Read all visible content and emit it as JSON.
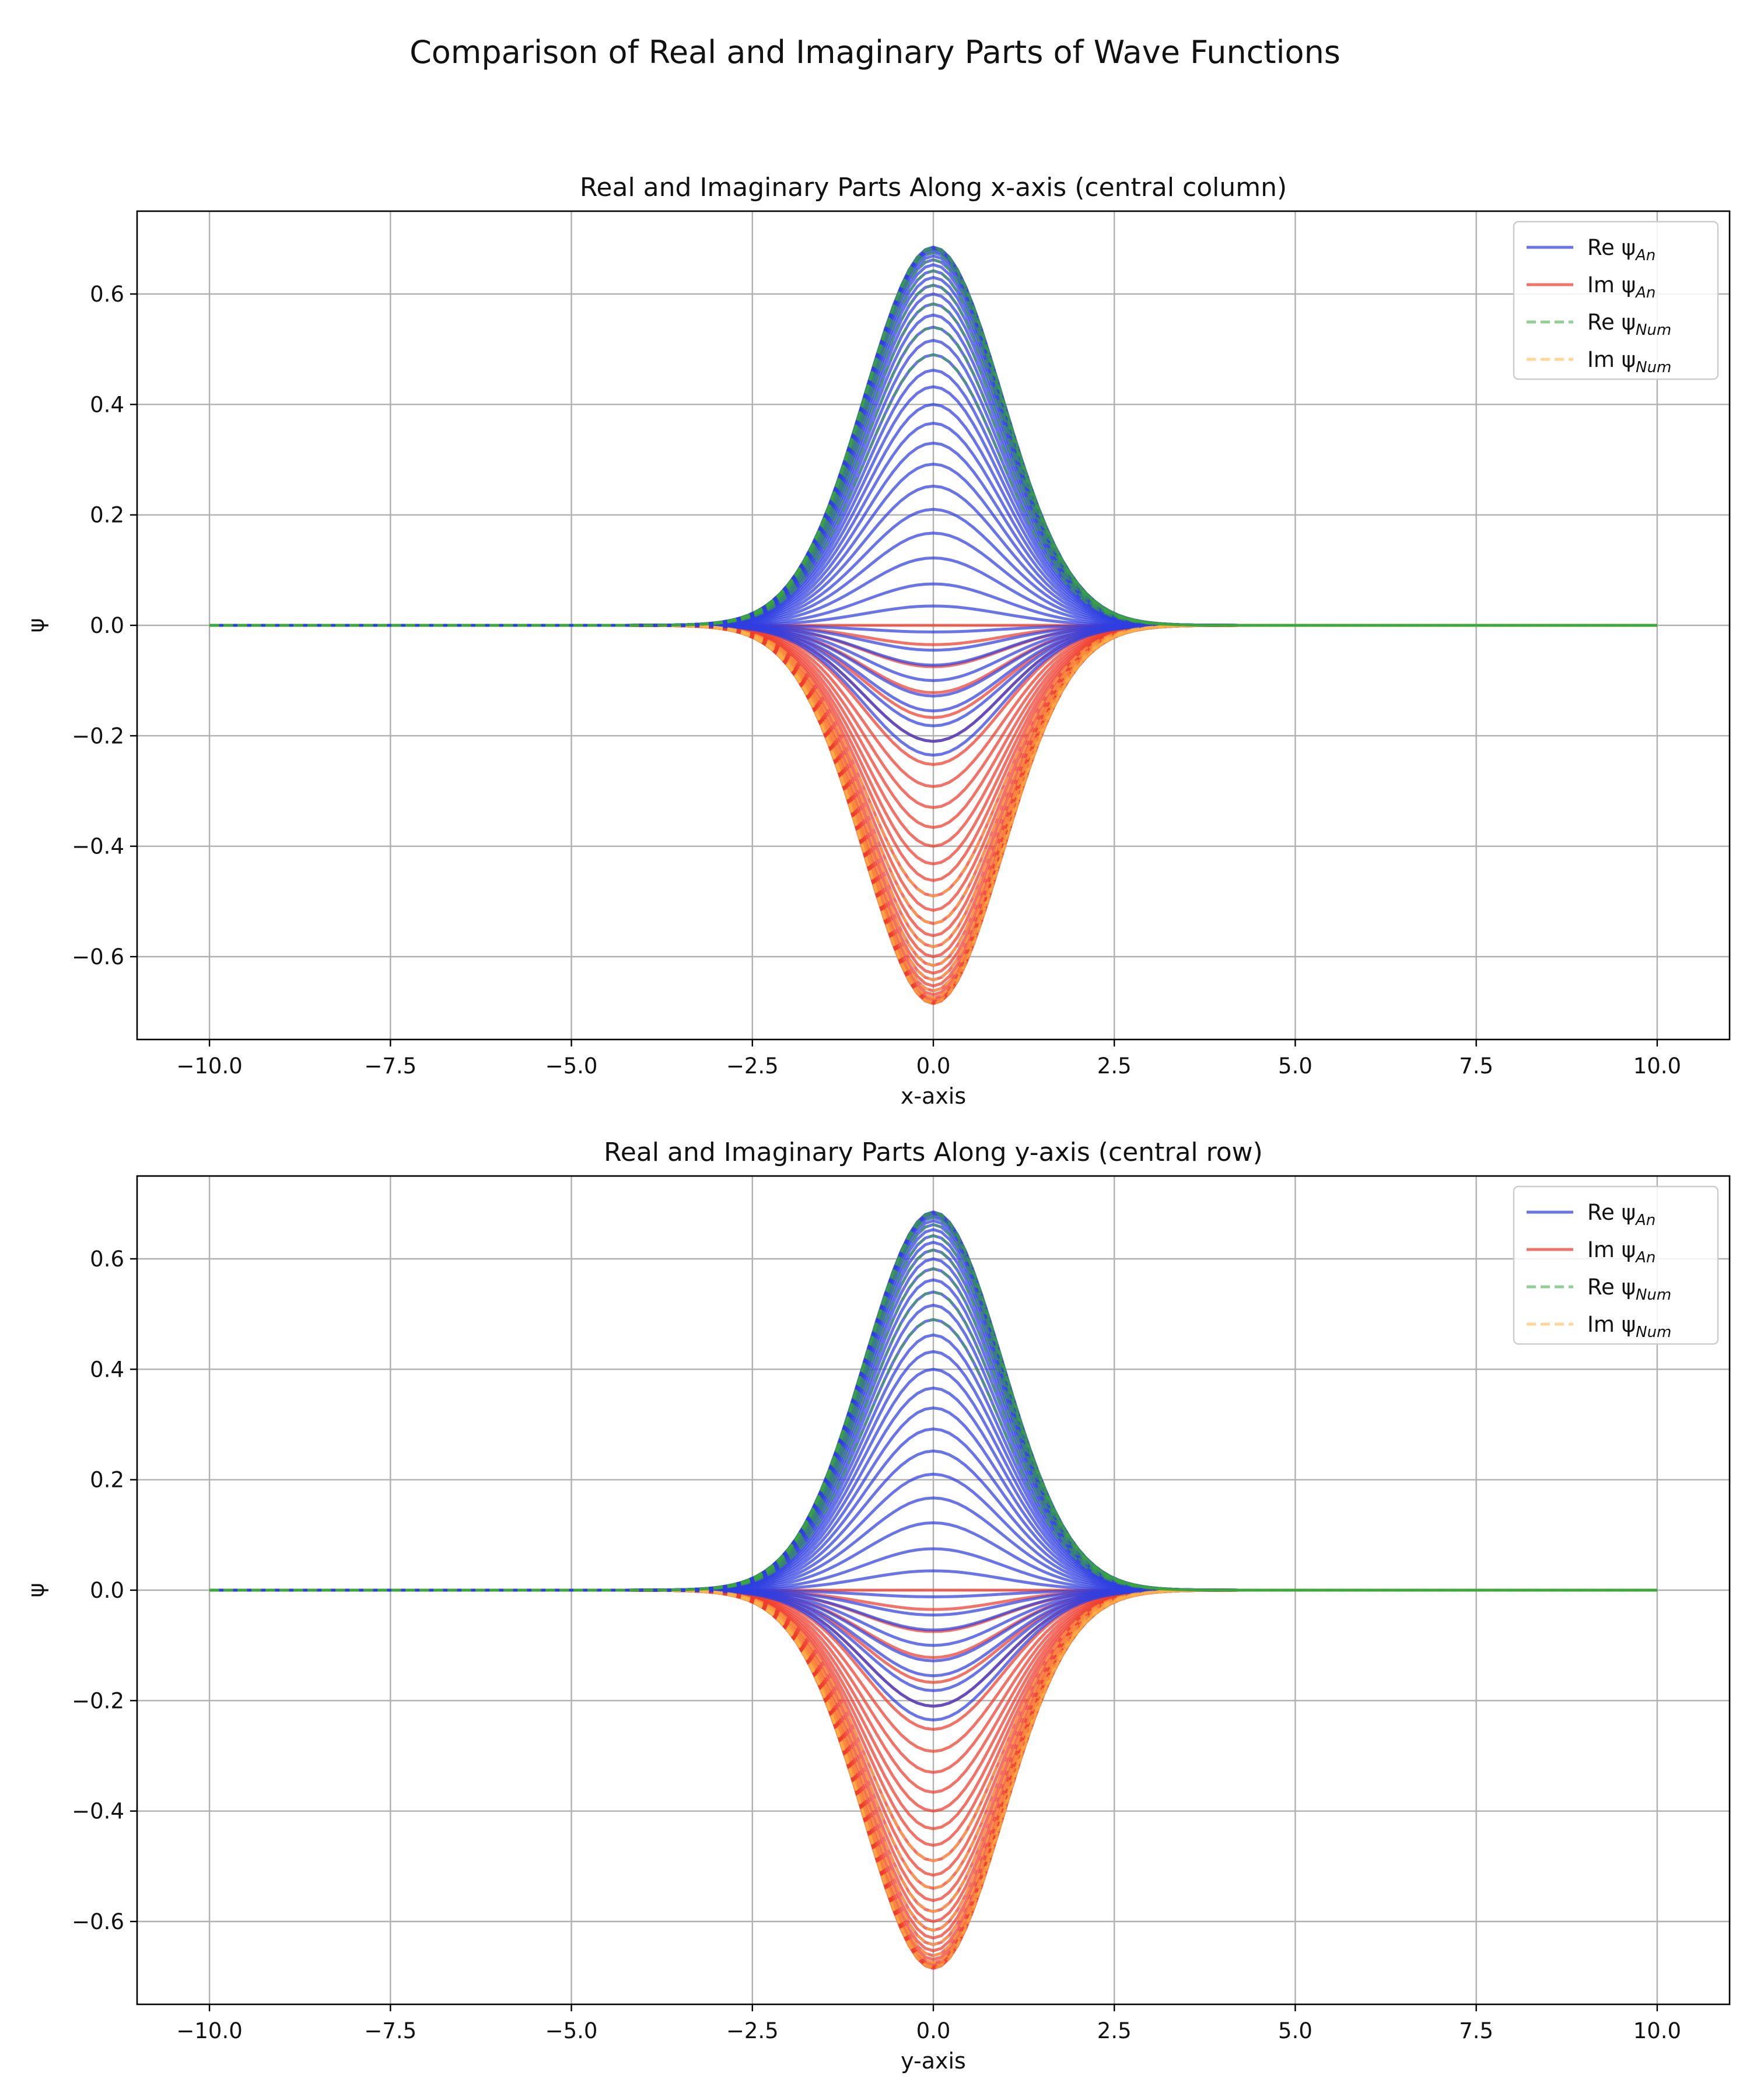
{
  "figure": {
    "title": "Comparison of Real and Imaginary Parts of Wave Functions"
  },
  "chart_data": [
    {
      "type": "line",
      "title": "Real and Imaginary Parts Along x-axis (central column)",
      "xlabel": "x-axis",
      "ylabel": "ψ",
      "xlim": [
        -11,
        11
      ],
      "ylim": [
        -0.75,
        0.75
      ],
      "xticks": [
        "−10.0",
        "−7.5",
        "−5.0",
        "−2.5",
        "0.0",
        "2.5",
        "5.0",
        "7.5",
        "10.0"
      ],
      "xtick_values": [
        -10,
        -7.5,
        -5,
        -2.5,
        0,
        2.5,
        5,
        7.5,
        10
      ],
      "yticks": [
        "−0.6",
        "−0.4",
        "−0.2",
        "0.0",
        "0.2",
        "0.4",
        "0.6"
      ],
      "ytick_values": [
        -0.6,
        -0.4,
        -0.2,
        0,
        0.2,
        0.4,
        0.6
      ],
      "grid": true,
      "legend_position": "top-right",
      "x_range": [
        -10,
        10
      ],
      "gaussian_width": 0.95,
      "series": [
        {
          "name": "Re ψAn",
          "label_main": "Re ψ",
          "label_sub": "An",
          "color": "#2f3fe0",
          "dash": "solid",
          "peaks": [
            0.685,
            0.684,
            0.682,
            0.679,
            0.675,
            0.669,
            0.662,
            0.653,
            0.642,
            0.63,
            0.616,
            0.6,
            0.582,
            0.562,
            0.54,
            0.516,
            0.49,
            0.462,
            0.432,
            0.4,
            0.366,
            0.33,
            0.292,
            0.252,
            0.21,
            0.167,
            0.122,
            0.075,
            0.035,
            -0.012,
            -0.045,
            -0.072,
            -0.1,
            -0.128,
            -0.155,
            -0.182,
            -0.21,
            -0.235
          ]
        },
        {
          "name": "Im ψAn",
          "label_main": "Im ψ",
          "label_sub": "An",
          "color": "#ef3b2c",
          "dash": "solid",
          "peaks": [
            -0.685,
            -0.684,
            -0.682,
            -0.679,
            -0.675,
            -0.669,
            -0.662,
            -0.653,
            -0.642,
            -0.63,
            -0.616,
            -0.6,
            -0.582,
            -0.562,
            -0.54,
            -0.516,
            -0.49,
            -0.462,
            -0.432,
            -0.4,
            -0.366,
            -0.33,
            -0.292,
            -0.252,
            -0.21,
            -0.167,
            -0.122,
            -0.075,
            -0.035,
            0.0
          ]
        },
        {
          "name": "Re ψNum",
          "label_main": "Re ψ",
          "label_sub": "Num",
          "color": "#3aa83a",
          "dash": "dashed",
          "peaks": [
            0.685,
            0.682,
            0.675,
            0.662,
            0.642,
            0.616,
            0.582,
            0.54,
            0.49
          ]
        },
        {
          "name": "Im ψNum",
          "label_main": "Im ψ",
          "label_sub": "Num",
          "color": "#ffb347",
          "dash": "dashed",
          "peaks": [
            -0.685,
            -0.682,
            -0.675,
            -0.662,
            -0.642,
            -0.616,
            -0.582,
            -0.54,
            -0.49
          ]
        }
      ]
    },
    {
      "type": "line",
      "title": "Real and Imaginary Parts Along y-axis (central row)",
      "xlabel": "y-axis",
      "ylabel": "ψ",
      "xlim": [
        -11,
        11
      ],
      "ylim": [
        -0.75,
        0.75
      ],
      "xticks": [
        "−10.0",
        "−7.5",
        "−5.0",
        "−2.5",
        "0.0",
        "2.5",
        "5.0",
        "7.5",
        "10.0"
      ],
      "xtick_values": [
        -10,
        -7.5,
        -5,
        -2.5,
        0,
        2.5,
        5,
        7.5,
        10
      ],
      "yticks": [
        "−0.6",
        "−0.4",
        "−0.2",
        "0.0",
        "0.2",
        "0.4",
        "0.6"
      ],
      "ytick_values": [
        -0.6,
        -0.4,
        -0.2,
        0,
        0.2,
        0.4,
        0.6
      ],
      "grid": true,
      "legend_position": "top-right",
      "x_range": [
        -10,
        10
      ],
      "gaussian_width": 0.95,
      "series": [
        {
          "name": "Re ψAn",
          "label_main": "Re ψ",
          "label_sub": "An",
          "color": "#2f3fe0",
          "dash": "solid",
          "peaks": [
            0.685,
            0.684,
            0.682,
            0.679,
            0.675,
            0.669,
            0.662,
            0.653,
            0.642,
            0.63,
            0.616,
            0.6,
            0.582,
            0.562,
            0.54,
            0.516,
            0.49,
            0.462,
            0.432,
            0.4,
            0.366,
            0.33,
            0.292,
            0.252,
            0.21,
            0.167,
            0.122,
            0.075,
            0.035,
            -0.012,
            -0.045,
            -0.072,
            -0.1,
            -0.128,
            -0.155,
            -0.182,
            -0.21,
            -0.235
          ]
        },
        {
          "name": "Im ψAn",
          "label_main": "Im ψ",
          "label_sub": "An",
          "color": "#ef3b2c",
          "dash": "solid",
          "peaks": [
            -0.685,
            -0.684,
            -0.682,
            -0.679,
            -0.675,
            -0.669,
            -0.662,
            -0.653,
            -0.642,
            -0.63,
            -0.616,
            -0.6,
            -0.582,
            -0.562,
            -0.54,
            -0.516,
            -0.49,
            -0.462,
            -0.432,
            -0.4,
            -0.366,
            -0.33,
            -0.292,
            -0.252,
            -0.21,
            -0.167,
            -0.122,
            -0.075,
            -0.035,
            0.0
          ]
        },
        {
          "name": "Re ψNum",
          "label_main": "Re ψ",
          "label_sub": "Num",
          "color": "#3aa83a",
          "dash": "dashed",
          "peaks": [
            0.685,
            0.682,
            0.675,
            0.662,
            0.642,
            0.616,
            0.582,
            0.54,
            0.49
          ]
        },
        {
          "name": "Im ψNum",
          "label_main": "Im ψ",
          "label_sub": "Num",
          "color": "#ffb347",
          "dash": "dashed",
          "peaks": [
            -0.685,
            -0.682,
            -0.675,
            -0.662,
            -0.642,
            -0.616,
            -0.582,
            -0.54,
            -0.49
          ]
        }
      ]
    }
  ]
}
